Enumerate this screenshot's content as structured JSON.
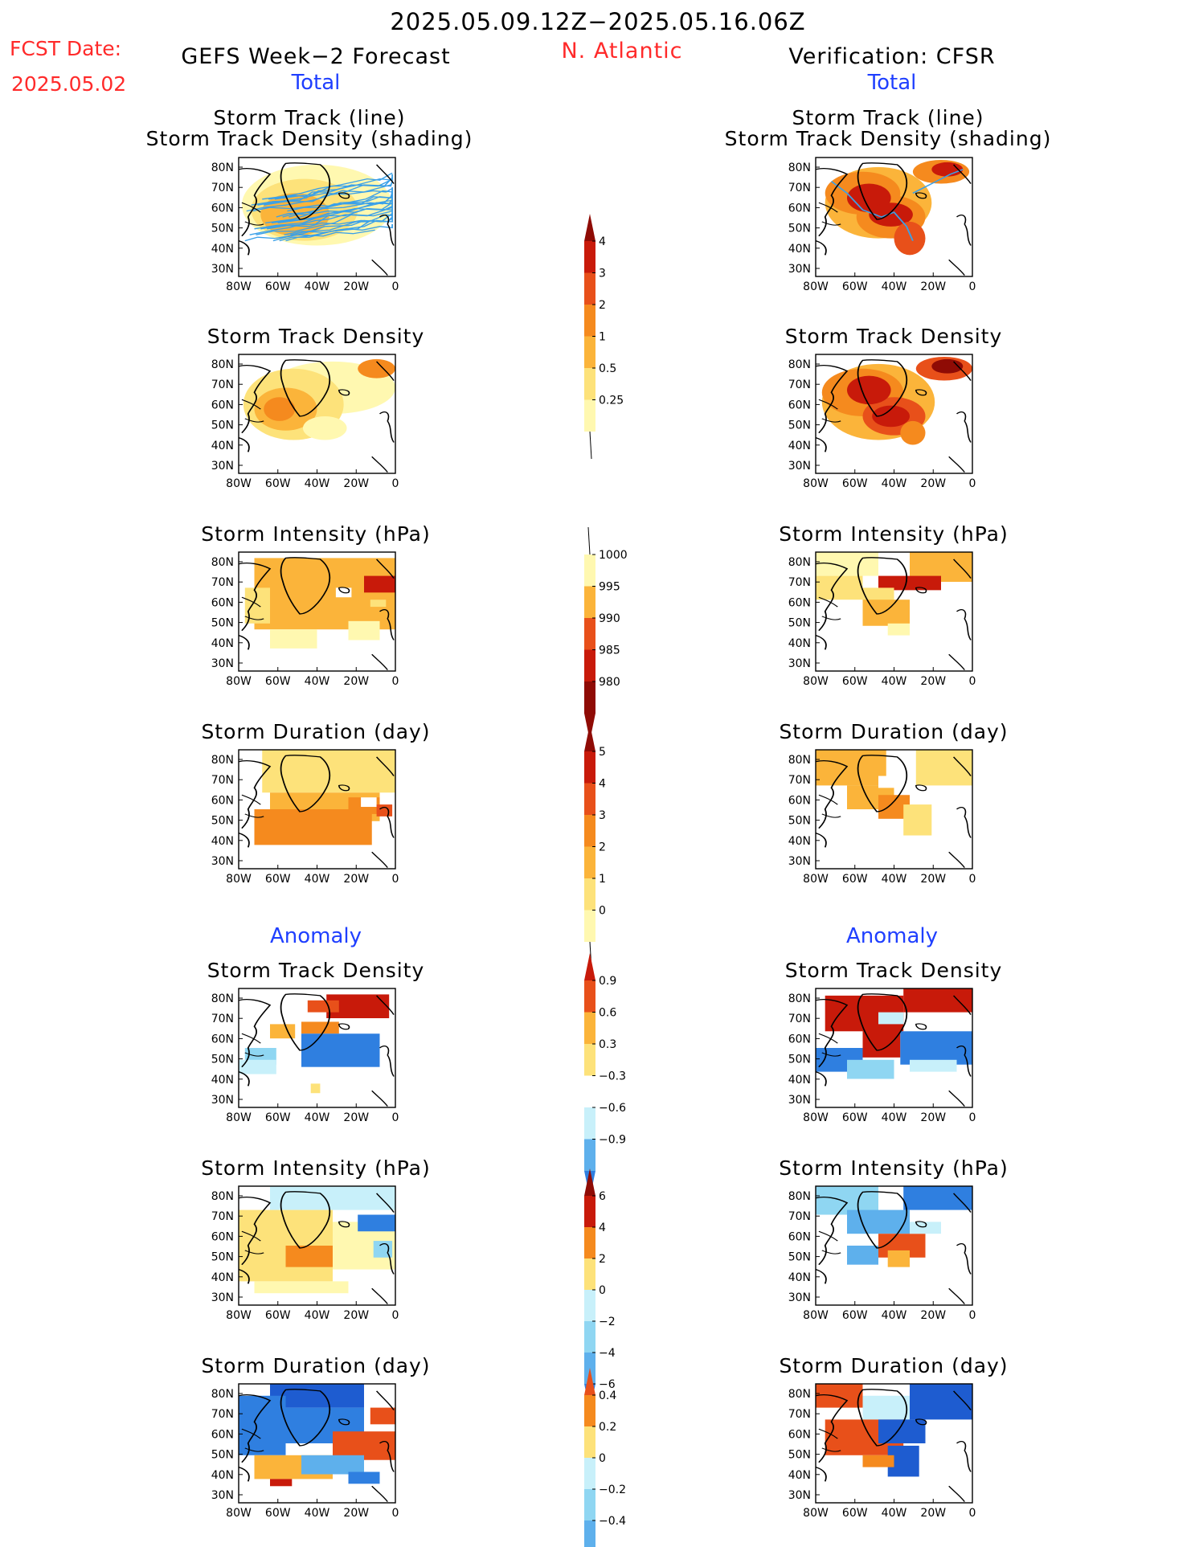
{
  "header": {
    "period": "2025.05.09.12Z−2025.05.16.06Z",
    "fcst_label": "FCST Date:",
    "fcst_date": "2025.05.02",
    "left_title": "GEFS Week−2 Forecast",
    "region": "N. Atlantic",
    "right_title": "Verification: CFSR",
    "total_left": "Total",
    "total_right": "Total",
    "anomaly_left": "Anomaly",
    "anomaly_right": "Anomaly"
  },
  "panels": {
    "track_line": "Storm Track (line)",
    "track_shading": "Storm Track Density (shading)",
    "density": "Storm Track Density",
    "intensity": "Storm Intensity (hPa)",
    "duration": "Storm Duration (day)"
  },
  "axes": {
    "lat_ticks": [
      "80N",
      "70N",
      "60N",
      "50N",
      "40N",
      "30N"
    ],
    "lon_ticks": [
      "80W",
      "60W",
      "40W",
      "20W",
      "0"
    ]
  },
  "colorbars": {
    "density": [
      "4",
      "3",
      "2",
      "1",
      "0.5",
      "0.25"
    ],
    "intensity": [
      "1000",
      "995",
      "990",
      "985",
      "980"
    ],
    "duration": [
      "5",
      "4",
      "3",
      "2",
      "1",
      "0"
    ],
    "density_anom": [
      "0.9",
      "0.6",
      "0.3",
      "−0.3",
      "−0.6",
      "−0.9"
    ],
    "intensity_anom": [
      "6",
      "4",
      "2",
      "0",
      "−2",
      "−4",
      "−6"
    ],
    "duration_anom": [
      "0.4",
      "0.2",
      "0",
      "−0.2",
      "−0.4"
    ]
  },
  "colors": {
    "track_line": "#3aa0e8",
    "warm": [
      "#fff8b0",
      "#fde27a",
      "#fbb43a",
      "#f58a1e",
      "#e8501a",
      "#c81a0a",
      "#8f0b05"
    ],
    "cool": [
      "#c8f0fa",
      "#8fd6f2",
      "#5eb0ec",
      "#2f7fe0",
      "#1e5cd0"
    ]
  }
}
